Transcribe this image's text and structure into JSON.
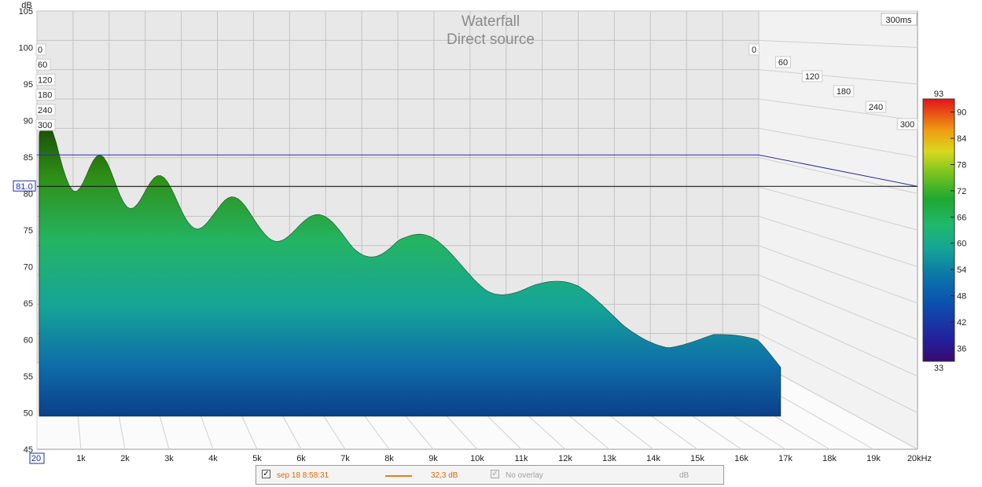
{
  "chart_data": {
    "type": "area",
    "title": "Waterfall",
    "subtitle": "Direct source",
    "ylabel": "dB",
    "xlabel": "",
    "time_window_label": "300ms",
    "cursor_label": "81.0",
    "cursor_db": 81.0,
    "reference_line_db": 85.3,
    "ylim": [
      45,
      105
    ],
    "y_ticks": [
      "45",
      "50",
      "55",
      "60",
      "65",
      "70",
      "75",
      "80",
      "85",
      "90",
      "95",
      "100",
      "105"
    ],
    "xlim_hz": [
      20,
      20000
    ],
    "x_ticks": [
      "20",
      "1k",
      "2k",
      "3k",
      "4k",
      "5k",
      "6k",
      "7k",
      "8k",
      "9k",
      "10k",
      "11k",
      "12k",
      "13k",
      "14k",
      "15k",
      "16k",
      "17k",
      "18k",
      "19k",
      "20kHz"
    ],
    "time_ticks_left": [
      "0",
      "60",
      "120",
      "180",
      "240",
      "300"
    ],
    "time_ticks_right": [
      "0",
      "60",
      "120",
      "180",
      "240",
      "300"
    ],
    "colorbar": {
      "min_label": "33",
      "max_label": "93",
      "ticks": [
        "36",
        "42",
        "48",
        "54",
        "60",
        "66",
        "72",
        "78",
        "84",
        "90"
      ],
      "range": [
        33,
        93
      ]
    },
    "series": [
      {
        "slice_ms": 0,
        "x_khz": [
          0.02,
          0.5,
          1,
          2,
          3,
          4,
          5,
          6,
          7,
          8,
          9,
          10,
          11,
          12,
          13,
          14,
          15,
          16,
          16.5
        ],
        "peak_db": [
          88,
          84,
          83,
          81,
          79,
          77,
          76.5,
          75,
          73.5,
          74,
          71,
          68.5,
          67.5,
          65.5,
          62.5,
          60.5,
          60.5,
          58.5,
          55
        ]
      }
    ]
  },
  "legend": {
    "measurement_name": "sep 18 8:58:31",
    "measurement_value": "32,3 dB",
    "overlay_label": "No overlay",
    "unit_label": "dB",
    "checkbox_mark": "✓",
    "line_color": "#e07f1d",
    "text_color": "#d26a10",
    "disabled_color": "#a0a0a0"
  }
}
